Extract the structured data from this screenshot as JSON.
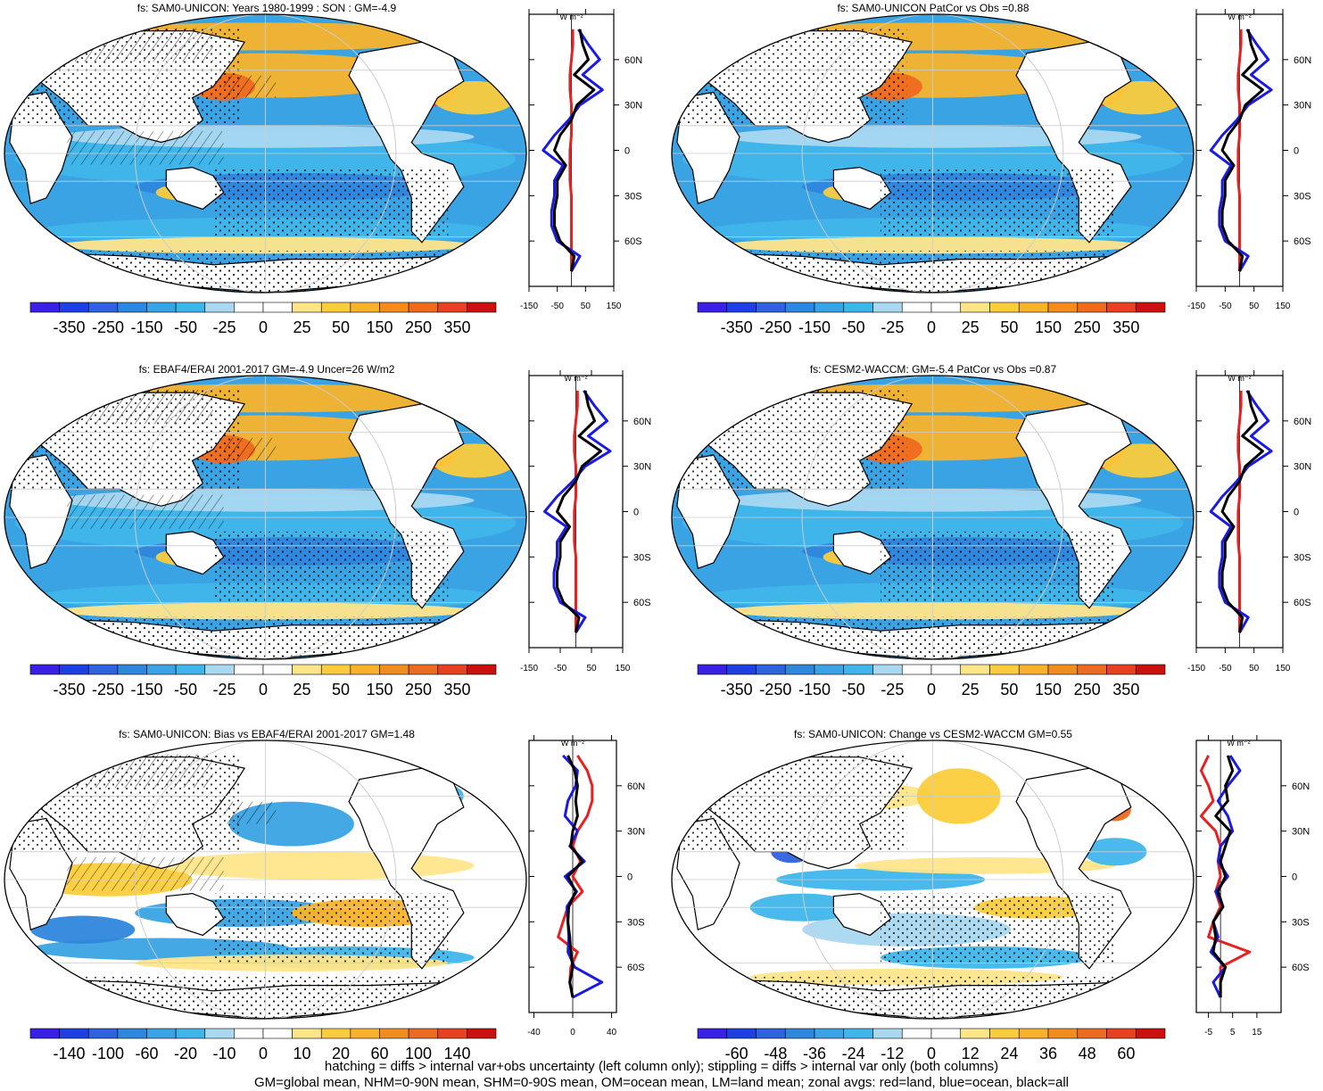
{
  "colors": {
    "scale_large": [
      "#3a1fe6",
      "#1f3fe6",
      "#2f61e0",
      "#2f86dd",
      "#3aa3e4",
      "#3fb6ea",
      "#a9d8f0",
      "#ffffff",
      "#ffffff",
      "#ffe58a",
      "#fbcc3c",
      "#f8b32a",
      "#f28c1c",
      "#ee6a1f",
      "#e84020",
      "#cc1010"
    ],
    "land": "#ffffff",
    "zonal_land": "#e82020",
    "zonal_ocean": "#1a1ae6",
    "zonal_all": "#000000"
  },
  "panels": [
    {
      "id": "p1",
      "title": "fs: SAM0-UNICON: Years 1980-1999 : SON : GM=-4.9",
      "colorbar_labels": [
        "-350",
        "-250",
        "-150",
        "-50",
        "-25",
        "0",
        "25",
        "50",
        "150",
        "250",
        "350"
      ],
      "zonal_xticks": [
        "-150",
        "-50",
        "50",
        "150"
      ],
      "zonal_xrange": [
        -150,
        150
      ],
      "hatching": true,
      "style": "mean"
    },
    {
      "id": "p2",
      "title": "fs: SAM0-UNICON PatCor vs Obs =0.88",
      "colorbar_labels": [
        "-350",
        "-250",
        "-150",
        "-50",
        "-25",
        "0",
        "25",
        "50",
        "150",
        "250",
        "350"
      ],
      "zonal_xticks": [
        "-150",
        "-50",
        "50",
        "150"
      ],
      "zonal_xrange": [
        -150,
        150
      ],
      "hatching": false,
      "style": "mean"
    },
    {
      "id": "p3",
      "title": "fs: EBAF4/ERAI 2001-2017 GM=-4.9 Uncer=26 W/m2",
      "colorbar_labels": [
        "-350",
        "-250",
        "-150",
        "-50",
        "-25",
        "0",
        "25",
        "50",
        "150",
        "250",
        "350"
      ],
      "zonal_xticks": [
        "-150",
        "-50",
        "50",
        "150"
      ],
      "zonal_xrange": [
        -150,
        150
      ],
      "hatching": true,
      "style": "mean"
    },
    {
      "id": "p4",
      "title": "fs: CESM2-WACCM: GM=-5.4 PatCor vs Obs =0.87",
      "colorbar_labels": [
        "-350",
        "-250",
        "-150",
        "-50",
        "-25",
        "0",
        "25",
        "50",
        "150",
        "250",
        "350"
      ],
      "zonal_xticks": [
        "-150",
        "-50",
        "50",
        "150"
      ],
      "zonal_xrange": [
        -150,
        150
      ],
      "hatching": false,
      "style": "mean"
    },
    {
      "id": "p5",
      "title": "fs: SAM0-UNICON: Bias vs EBAF4/ERAI 2001-2017  GM=1.48",
      "colorbar_labels": [
        "-140",
        "-100",
        "-60",
        "-20",
        "-10",
        "0",
        "10",
        "20",
        "60",
        "100",
        "140"
      ],
      "zonal_xticks": [
        "-40",
        "0",
        "40"
      ],
      "zonal_xrange": [
        -45,
        45
      ],
      "hatching": true,
      "style": "bias"
    },
    {
      "id": "p6",
      "title": "fs: SAM0-UNICON: Change vs CESM2-WACCM GM=0.55",
      "colorbar_labels": [
        "-60",
        "-48",
        "-36",
        "-24",
        "-12",
        "0",
        "12",
        "24",
        "36",
        "48",
        "60"
      ],
      "zonal_xticks": [
        "-5",
        "5",
        "15"
      ],
      "zonal_xrange": [
        -10,
        25
      ],
      "hatching": false,
      "style": "change"
    }
  ],
  "zonal_units": "W m⁻²",
  "lat_labels": [
    "60N",
    "30N",
    "0",
    "30S",
    "60S"
  ],
  "lat_values": [
    60,
    30,
    0,
    -30,
    -60
  ],
  "chart_data": {
    "type": "heatmap",
    "variable": "fs",
    "zonal_means": {
      "lat": [
        80,
        70,
        60,
        50,
        40,
        30,
        20,
        10,
        0,
        -10,
        -20,
        -30,
        -40,
        -50,
        -60,
        -70,
        -80
      ],
      "all_mean_panels": [
        30,
        40,
        60,
        10,
        80,
        20,
        0,
        -40,
        -60,
        -20,
        -50,
        -50,
        -60,
        -60,
        -40,
        10,
        0
      ],
      "ocean_mean_panels": [
        25,
        60,
        100,
        40,
        110,
        30,
        -10,
        -60,
        -100,
        -30,
        -60,
        -60,
        -70,
        -70,
        -50,
        30,
        0
      ],
      "land_mean_panels": [
        5,
        5,
        0,
        -5,
        -5,
        0,
        0,
        0,
        -5,
        -5,
        -5,
        0,
        0,
        0,
        0,
        0,
        0
      ],
      "all_bias": [
        -5,
        2,
        5,
        3,
        5,
        0,
        -2,
        10,
        -5,
        3,
        -4,
        -5,
        -3,
        -2,
        0,
        -3,
        0
      ],
      "ocean_bias": [
        -10,
        5,
        3,
        -5,
        -8,
        5,
        -3,
        12,
        -8,
        4,
        -6,
        -5,
        -4,
        -5,
        2,
        30,
        0
      ],
      "land_bias": [
        5,
        15,
        20,
        20,
        15,
        5,
        0,
        8,
        0,
        10,
        -5,
        -10,
        -15,
        5,
        -2,
        -3,
        0
      ],
      "all_change": [
        3,
        5,
        2,
        3,
        -2,
        4,
        2,
        0,
        2,
        -1,
        1,
        -3,
        -2,
        -3,
        2,
        0,
        0
      ],
      "ocean_change": [
        4,
        8,
        3,
        -1,
        3,
        5,
        0,
        -1,
        3,
        -2,
        1,
        -3,
        -1,
        -4,
        2,
        -3,
        0
      ],
      "land_change": [
        -5,
        -8,
        -5,
        -3,
        -8,
        -2,
        0,
        -1,
        0,
        -2,
        0,
        -3,
        -5,
        12,
        0,
        0,
        0
      ]
    }
  },
  "footnote": {
    "line1": "hatching = diffs > internal var+obs uncertainty (left column only); stippling = diffs > internal var only (both columns)",
    "line2": "GM=global mean, NHM=0-90N mean, SHM=0-90S mean, OM=ocean mean, LM=land mean; zonal avgs: red=land, blue=ocean, black=all"
  }
}
